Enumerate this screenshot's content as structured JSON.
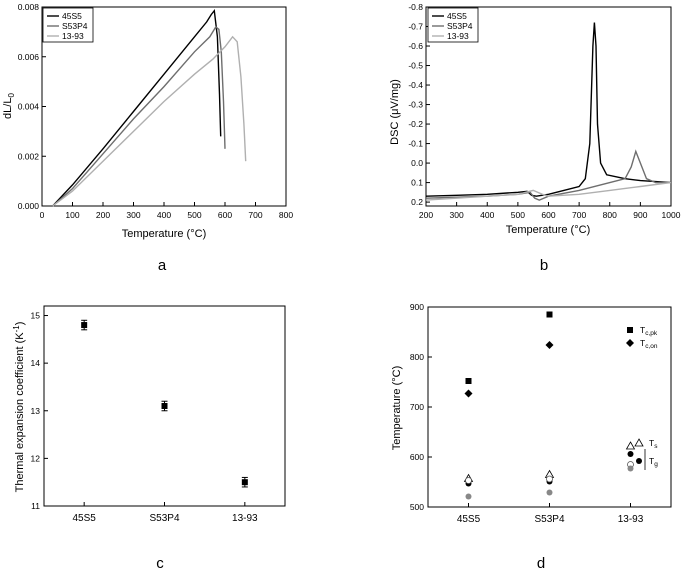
{
  "panel_letters": [
    "a",
    "b",
    "c",
    "d"
  ],
  "chart_data": [
    {
      "panel": "a",
      "type": "line",
      "xlabel": "Temperature (°C)",
      "ylabel_main": "dL/L",
      "ylabel_sub": "0",
      "xlim": [
        0,
        800
      ],
      "ylim": [
        0,
        0.008
      ],
      "xticks": [
        0,
        100,
        200,
        300,
        400,
        500,
        600,
        700,
        800
      ],
      "yticks": [
        0.0,
        0.002,
        0.004,
        0.006,
        0.008
      ],
      "ytick_labels": [
        "0.000",
        "0.002",
        "0.004",
        "0.006",
        "0.008"
      ],
      "legend_position": "top-left",
      "series": [
        {
          "name": "45S5",
          "color": "#000000",
          "x": [
            35,
            100,
            200,
            300,
            400,
            500,
            540,
            555,
            565,
            575,
            582,
            586
          ],
          "y": [
            0,
            0.00085,
            0.0023,
            0.0038,
            0.0053,
            0.0068,
            0.0074,
            0.0077,
            0.00785,
            0.0068,
            0.0045,
            0.0028
          ]
        },
        {
          "name": "S53P4",
          "color": "#6e6e6e",
          "x": [
            35,
            100,
            200,
            300,
            400,
            500,
            550,
            570,
            580,
            588,
            595,
            600
          ],
          "y": [
            0,
            0.0007,
            0.0021,
            0.0035,
            0.0048,
            0.0062,
            0.0068,
            0.0072,
            0.0071,
            0.0062,
            0.0042,
            0.0023
          ]
        },
        {
          "name": "13-93",
          "color": "#b0b0b0",
          "x": [
            35,
            100,
            200,
            300,
            400,
            500,
            560,
            600,
            625,
            640,
            652,
            662,
            668
          ],
          "y": [
            0,
            0.0006,
            0.0018,
            0.003,
            0.0042,
            0.0053,
            0.0059,
            0.0064,
            0.0068,
            0.0066,
            0.0052,
            0.0033,
            0.0018
          ]
        }
      ]
    },
    {
      "panel": "b",
      "type": "line",
      "xlabel": "Temperature (°C)",
      "ylabel": "DSC (μV/mg)",
      "xlim": [
        200,
        1000
      ],
      "ylim": [
        0.22,
        -0.8
      ],
      "xticks": [
        200,
        300,
        400,
        500,
        600,
        700,
        800,
        900,
        1000
      ],
      "yticks": [
        0.2,
        0.1,
        0.0,
        -0.1,
        -0.2,
        -0.3,
        -0.4,
        -0.5,
        -0.6,
        -0.7,
        -0.8
      ],
      "ytick_labels": [
        "0.2",
        "0.1",
        "0.0",
        "-0.1",
        "-0.2",
        "-0.3",
        "-0.4",
        "-0.5",
        "-0.6",
        "-0.7",
        "-0.8"
      ],
      "legend_position": "top-left",
      "series": [
        {
          "name": "45S5",
          "color": "#000000",
          "x": [
            200,
            300,
            400,
            500,
            530,
            545,
            560,
            600,
            650,
            700,
            720,
            735,
            745,
            750,
            755,
            760,
            770,
            790,
            850,
            900,
            1000
          ],
          "y": [
            0.17,
            0.165,
            0.16,
            0.15,
            0.145,
            0.165,
            0.17,
            0.16,
            0.14,
            0.12,
            0.08,
            -0.1,
            -0.6,
            -0.72,
            -0.6,
            -0.2,
            0.0,
            0.06,
            0.08,
            0.09,
            0.1
          ]
        },
        {
          "name": "S53P4",
          "color": "#6e6e6e",
          "x": [
            200,
            300,
            400,
            500,
            540,
            555,
            570,
            600,
            700,
            800,
            850,
            870,
            885,
            900,
            920,
            950,
            1000
          ],
          "y": [
            0.18,
            0.175,
            0.17,
            0.16,
            0.15,
            0.18,
            0.19,
            0.17,
            0.14,
            0.1,
            0.08,
            0.02,
            -0.06,
            0.0,
            0.08,
            0.1,
            0.1
          ]
        },
        {
          "name": "13-93",
          "color": "#b0b0b0",
          "x": [
            200,
            300,
            400,
            500,
            550,
            580,
            600,
            700,
            800,
            850,
            900,
            950,
            1000
          ],
          "y": [
            0.19,
            0.18,
            0.17,
            0.16,
            0.14,
            0.16,
            0.17,
            0.16,
            0.14,
            0.13,
            0.12,
            0.11,
            0.1
          ]
        }
      ]
    },
    {
      "panel": "c",
      "type": "scatter",
      "ylabel": "Thermal expansion coefficient (K",
      "ylabel_sup": "-1",
      "ylabel_end": ")",
      "categories": [
        "45S5",
        "S53P4",
        "13-93"
      ],
      "values": [
        14.8,
        13.1,
        11.5
      ],
      "errors": [
        0.1,
        0.1,
        0.1
      ],
      "ylim": [
        11,
        15.2
      ],
      "yticks": [
        11,
        12,
        13,
        14,
        15
      ]
    },
    {
      "panel": "d",
      "type": "scatter",
      "ylabel": "Temperature (°C)",
      "categories": [
        "45S5",
        "S53P4",
        "13-93"
      ],
      "ylim": [
        500,
        900
      ],
      "yticks": [
        500,
        600,
        700,
        800,
        900
      ],
      "series": [
        {
          "name": "T",
          "sub": "c,pk",
          "marker": "square",
          "values": [
            752,
            885,
            null
          ]
        },
        {
          "name": "T",
          "sub": "c,on",
          "marker": "diamond",
          "values": [
            727,
            824,
            null
          ]
        },
        {
          "name": "T",
          "sub": "s",
          "marker": "triangle-open",
          "values": [
            557,
            565,
            622
          ]
        },
        {
          "name": "T",
          "sub": "g",
          "marker": "circle-group",
          "values": [
            547,
            551,
            606
          ]
        },
        {
          "name": "",
          "sub": "",
          "marker": "circle-open",
          "values": [
            553,
            556,
            585
          ]
        },
        {
          "name": "",
          "sub": "",
          "marker": "circle-gray",
          "values": [
            521,
            529,
            577
          ]
        }
      ]
    }
  ]
}
